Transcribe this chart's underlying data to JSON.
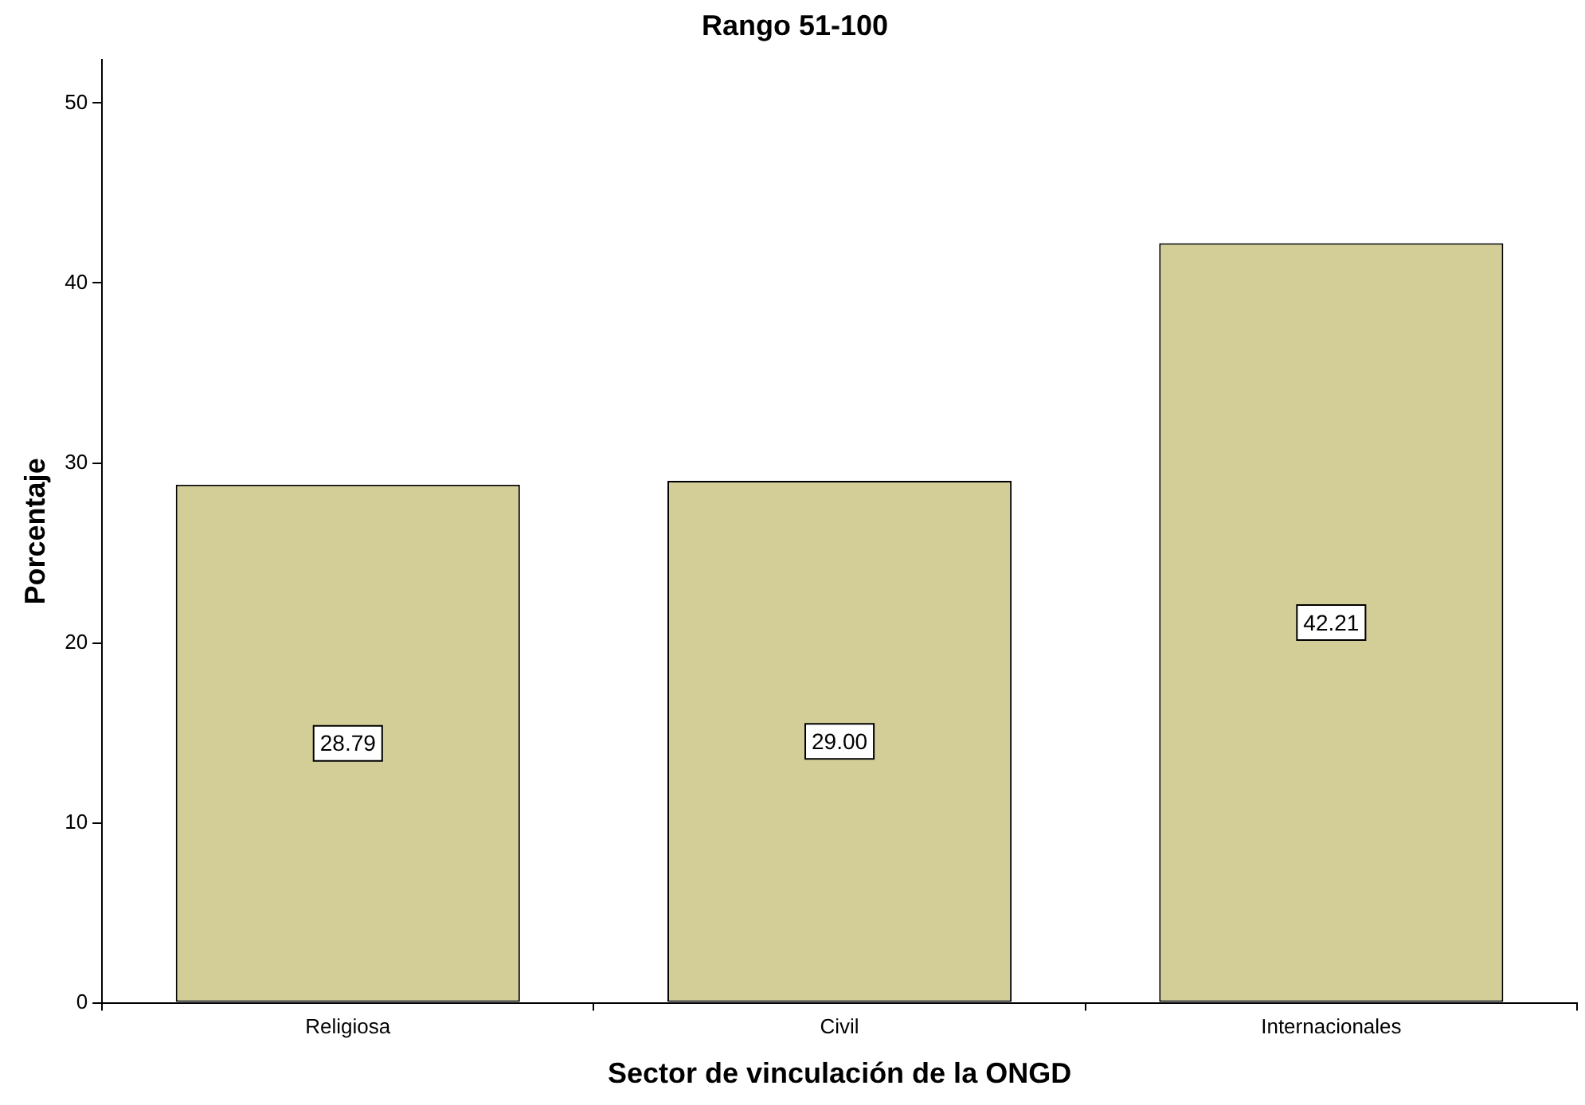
{
  "chart_data": {
    "type": "bar",
    "title": "Rango 51-100",
    "xlabel": "Sector de vinculación de la ONGD",
    "ylabel": "Porcentaje",
    "categories": [
      "Religiosa",
      "Civil",
      "Internacionales"
    ],
    "values": [
      28.79,
      29.0,
      42.21
    ],
    "value_labels": [
      "28.79",
      "29.00",
      "42.21"
    ],
    "color": "#d3ce97",
    "ylim": [
      0,
      52.4
    ],
    "yticks": [
      0,
      10,
      20,
      30,
      40,
      50
    ],
    "grid": false,
    "legend": false
  }
}
